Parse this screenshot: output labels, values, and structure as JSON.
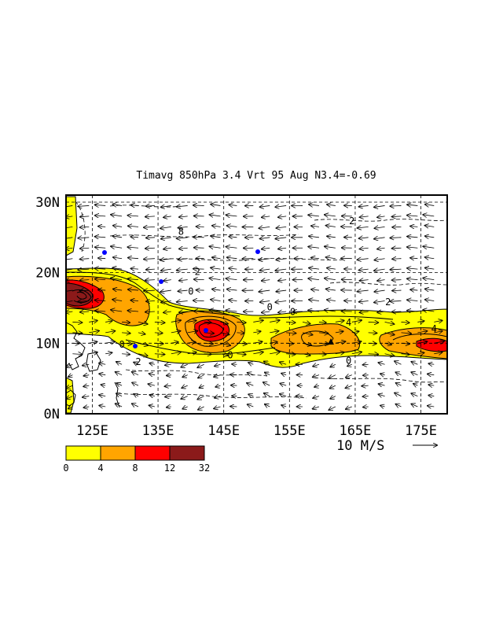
{
  "chart_data": {
    "type": "contour",
    "title": "Timavg 850hPa 3.4 Vrt 95 Aug N3.4=-0.69",
    "x_ticks": [
      "125E",
      "135E",
      "145E",
      "155E",
      "165E",
      "175E"
    ],
    "x_tick_values": [
      125,
      135,
      145,
      155,
      165,
      175
    ],
    "y_ticks": [
      "0N",
      "10N",
      "20N",
      "30N"
    ],
    "y_tick_values": [
      0,
      10,
      20,
      30
    ],
    "xlim": [
      121,
      179
    ],
    "ylim": [
      0,
      31
    ],
    "grid": true,
    "reference_vector_label": "10 M/S",
    "colorbar": {
      "labels": [
        "0",
        "4",
        "8",
        "12",
        "32"
      ],
      "levels": [
        0,
        4,
        8,
        12,
        32
      ],
      "colors": [
        "#ffff00",
        "#ffa500",
        "#ff0000",
        "#8b1a1a"
      ]
    },
    "contour_labels": [
      {
        "text": "8",
        "lon": 138.5,
        "lat": 25.5
      },
      {
        "text": "2",
        "lon": 141,
        "lat": 19.8
      },
      {
        "text": "0",
        "lon": 140,
        "lat": 17
      },
      {
        "text": "0",
        "lon": 152,
        "lat": 14.8
      },
      {
        "text": "0",
        "lon": 155.5,
        "lat": 14.1
      },
      {
        "text": "2",
        "lon": 164.5,
        "lat": 27
      },
      {
        "text": "2",
        "lon": 170,
        "lat": 15.5
      },
      {
        "text": "4",
        "lon": 177,
        "lat": 11.7
      },
      {
        "text": "4",
        "lon": 164,
        "lat": 12.6
      },
      {
        "text": "0",
        "lon": 129.5,
        "lat": 9.5
      },
      {
        "text": "0",
        "lon": 146,
        "lat": 8
      },
      {
        "text": "2",
        "lon": 132,
        "lat": 7
      },
      {
        "text": "0",
        "lon": 164,
        "lat": 7.2
      }
    ],
    "fields": [
      {
        "level": "0-4",
        "color": "#ffff00",
        "region": "monsoon trough band 5N-21N, 121E-179E"
      },
      {
        "level": "4-8",
        "color": "#ffa500",
        "region": "maxima near 122E-132E/19N, 144E/13N, 164E/11N, 176E/10N"
      },
      {
        "level": "8-12",
        "color": "#ff0000",
        "region": "centres near 123E/19N, 145E/13N, 177E/10N"
      },
      {
        "level": "12-32",
        "color": "#8b1a1a",
        "region": "core near 124E/18.5N"
      }
    ]
  }
}
